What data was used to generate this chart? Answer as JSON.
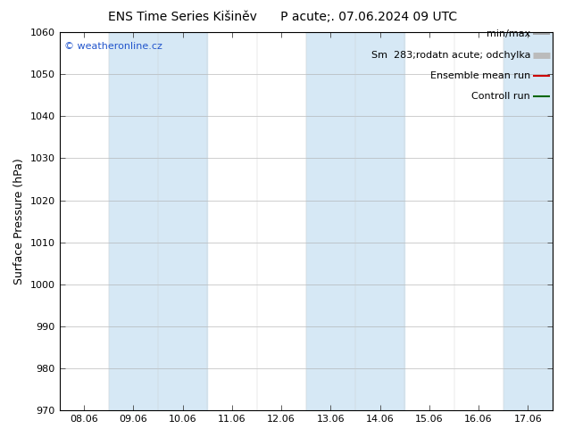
{
  "title": "ENS Time Series Kišiněv      P acute;. 07.06.2024 09 UTC",
  "ylabel": "Surface Pressure (hPa)",
  "ylim": [
    970,
    1060
  ],
  "yticks": [
    970,
    980,
    990,
    1000,
    1010,
    1020,
    1030,
    1040,
    1050,
    1060
  ],
  "x_labels": [
    "08.06",
    "09.06",
    "10.06",
    "11.06",
    "12.06",
    "13.06",
    "14.06",
    "15.06",
    "16.06",
    "17.06"
  ],
  "x_values": [
    0,
    1,
    2,
    3,
    4,
    5,
    6,
    7,
    8,
    9
  ],
  "shaded_columns": [
    1,
    2,
    5,
    6,
    9
  ],
  "bg_color": "#ffffff",
  "shade_color": "#d6e8f5",
  "legend_items": [
    {
      "label": "min/max",
      "color": "#999999",
      "lw": 1.2
    },
    {
      "label": "Sm  283;rodatn acute; odchylka",
      "color": "#bbbbbb",
      "lw": 5
    },
    {
      "label": "Ensemble mean run",
      "color": "#cc0000",
      "lw": 1.5
    },
    {
      "label": "Controll run",
      "color": "#006600",
      "lw": 1.5
    }
  ],
  "watermark": "© weatheronline.cz",
  "watermark_color": "#2255cc",
  "border_color": "#000000",
  "tick_color": "#444444",
  "font_size_ticks": 8,
  "font_size_title": 10,
  "font_size_legend": 8,
  "font_size_ylabel": 9,
  "font_size_watermark": 8
}
